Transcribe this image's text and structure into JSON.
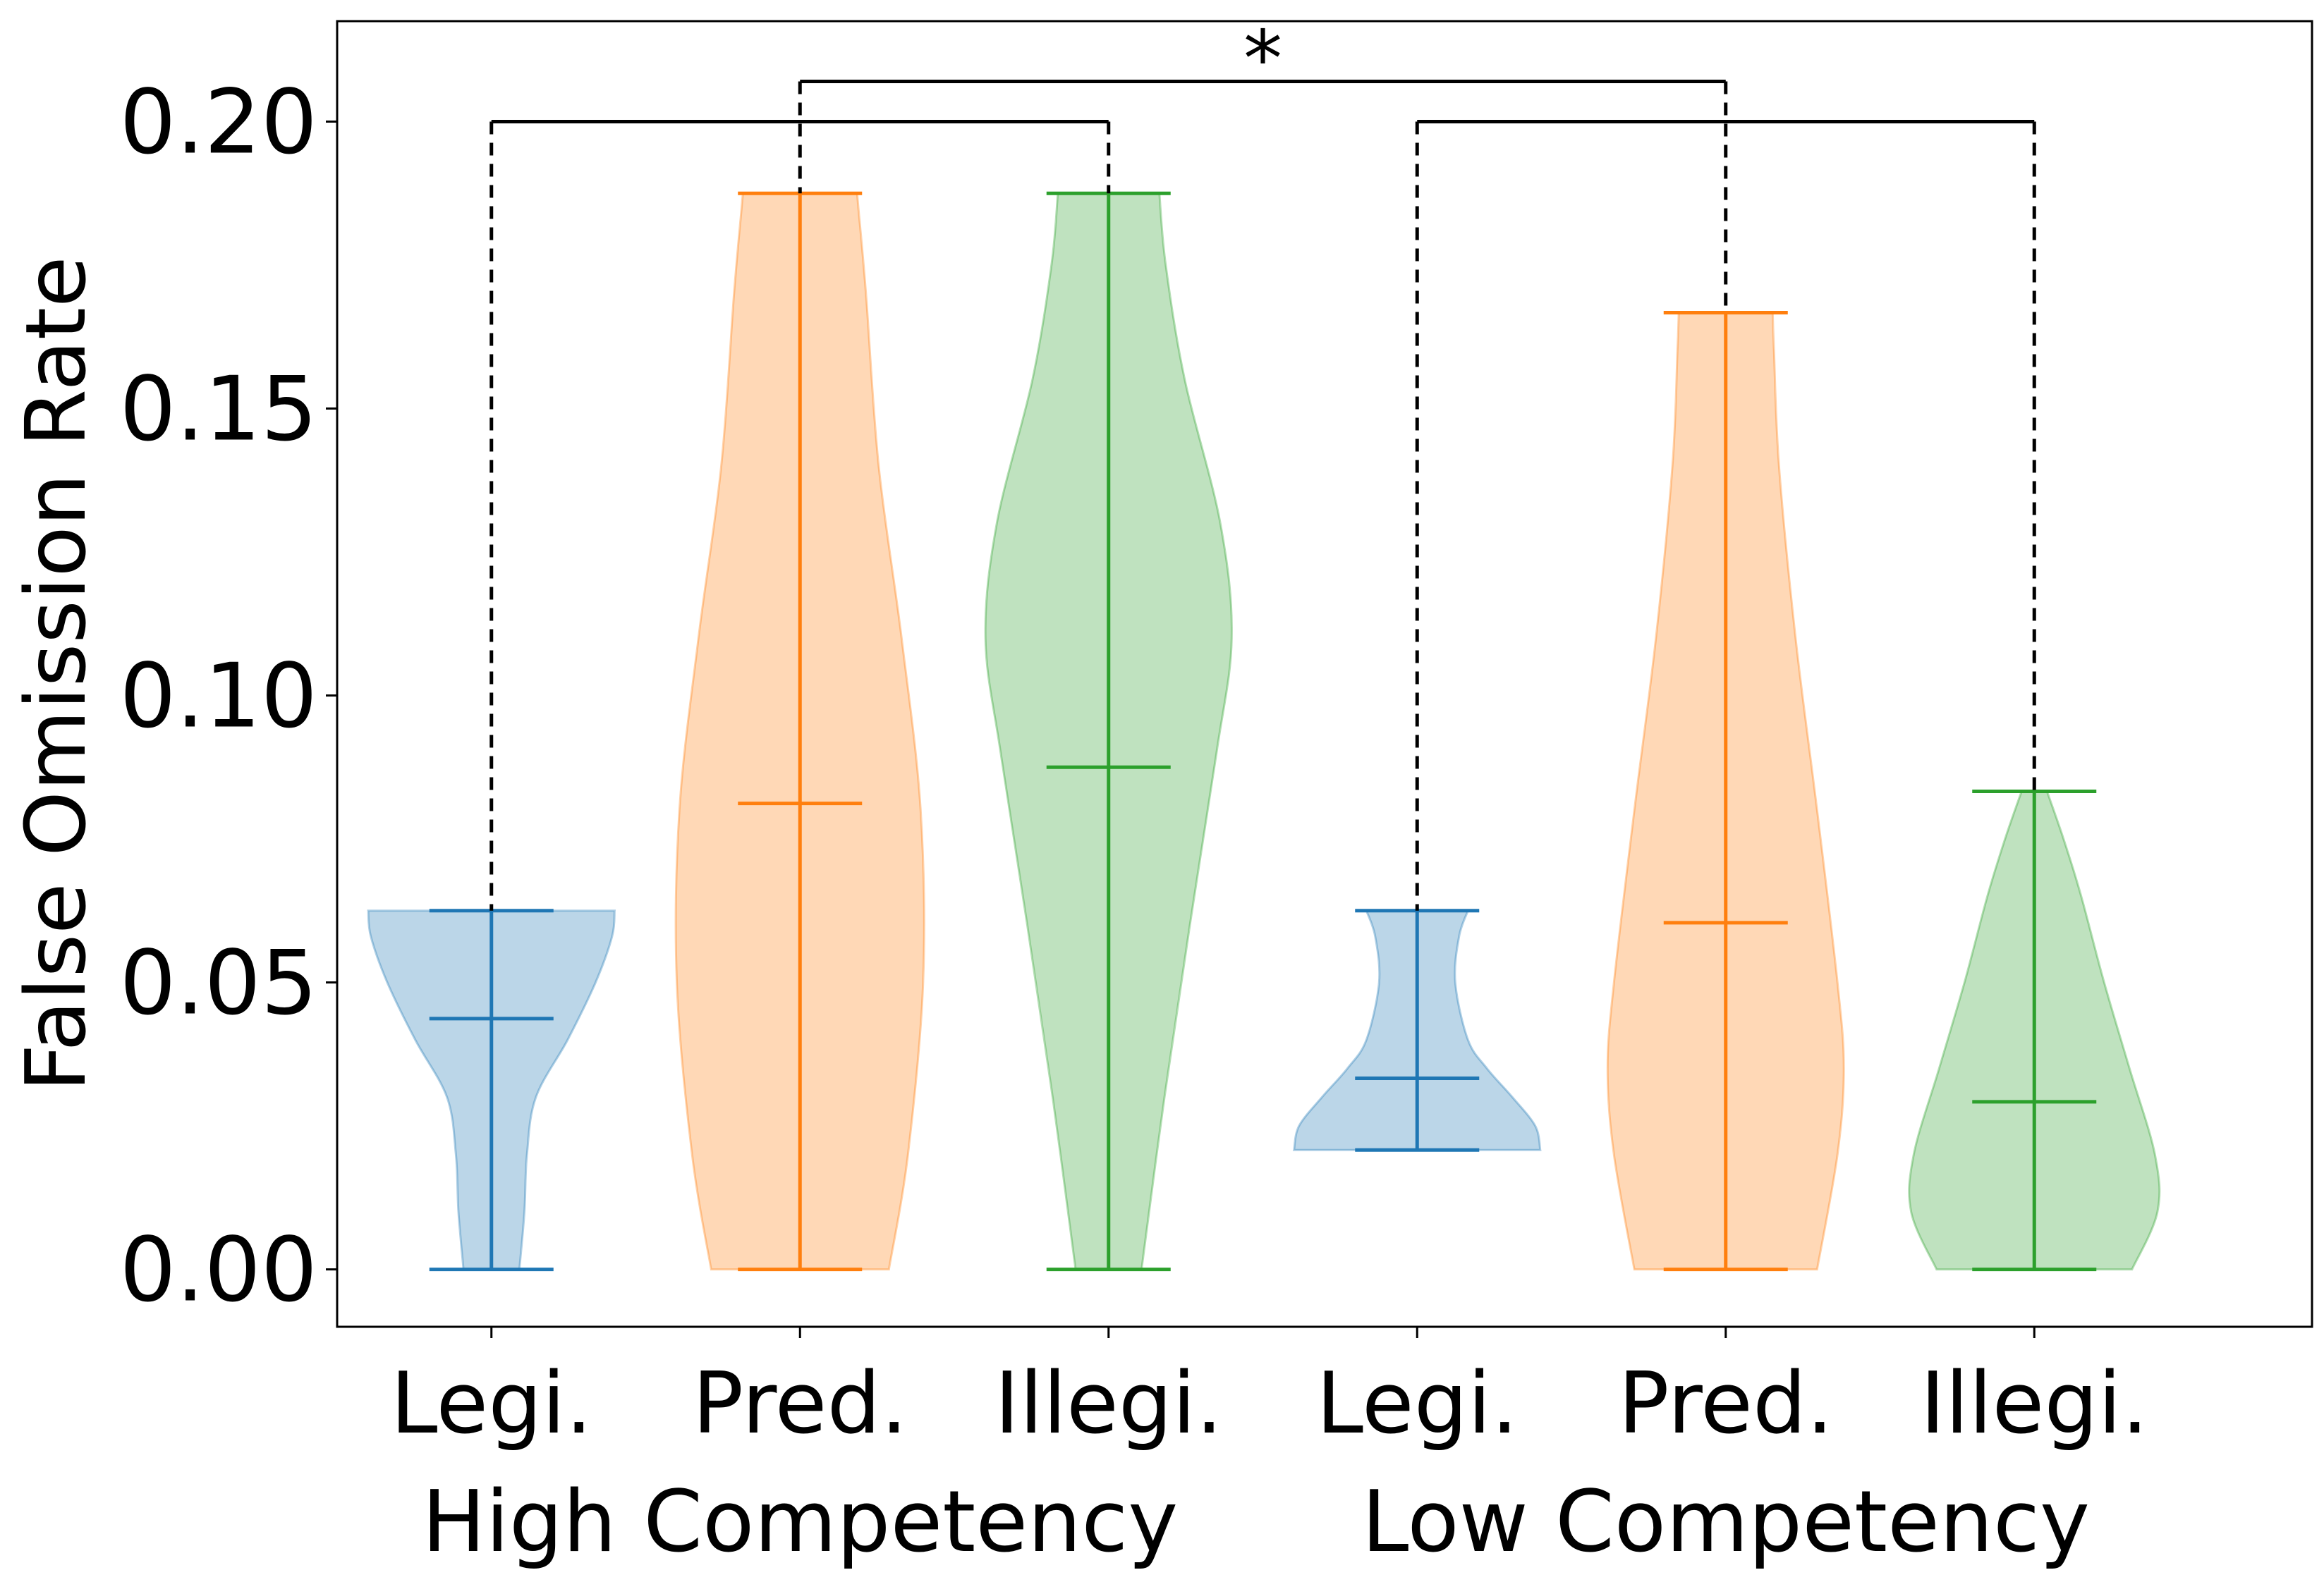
{
  "chart_data": {
    "type": "violin",
    "title": "",
    "xlabel": "",
    "ylabel": "False Omission Rate",
    "ylim": [
      -0.01,
      0.2175
    ],
    "yticks": [
      "0.00",
      "0.05",
      "0.10",
      "0.15",
      "0.20"
    ],
    "ytick_values": [
      0.0,
      0.05,
      0.1,
      0.15,
      0.2
    ],
    "grid": false,
    "legend": "none",
    "categories": [
      "Legi.",
      "Pred.",
      "Illegi.",
      "Legi.",
      "Pred.",
      "Illegi."
    ],
    "groups": [
      {
        "label": "High Competency",
        "members": [
          0,
          1,
          2
        ]
      },
      {
        "label": "Low Competency",
        "members": [
          3,
          4,
          5
        ]
      }
    ],
    "colors": {
      "blue": "#1f77b4",
      "orange": "#ff7f0e",
      "green": "#2ca02c"
    },
    "series": [
      {
        "category": "Legi.",
        "group": "High Competency",
        "color": "#1f77b4",
        "min": 0.0,
        "max": 0.0625,
        "mean": 0.0437,
        "density": [
          [
            0.0,
            0.22
          ],
          [
            0.01,
            0.26
          ],
          [
            0.02,
            0.28
          ],
          [
            0.03,
            0.35
          ],
          [
            0.04,
            0.6
          ],
          [
            0.05,
            0.82
          ],
          [
            0.058,
            0.95
          ],
          [
            0.0625,
            0.97
          ]
        ]
      },
      {
        "category": "Pred.",
        "group": "High Competency",
        "color": "#ff7f0e",
        "min": 0.0,
        "max": 0.1875,
        "mean": 0.0812,
        "density": [
          [
            0.0,
            0.7
          ],
          [
            0.02,
            0.85
          ],
          [
            0.05,
            0.97
          ],
          [
            0.08,
            0.95
          ],
          [
            0.11,
            0.8
          ],
          [
            0.14,
            0.62
          ],
          [
            0.17,
            0.52
          ],
          [
            0.185,
            0.46
          ],
          [
            0.1875,
            0.45
          ]
        ]
      },
      {
        "category": "Illegi.",
        "group": "High Competency",
        "color": "#2ca02c",
        "min": 0.0,
        "max": 0.1875,
        "mean": 0.0875,
        "density": [
          [
            0.0,
            0.26
          ],
          [
            0.03,
            0.44
          ],
          [
            0.06,
            0.64
          ],
          [
            0.09,
            0.85
          ],
          [
            0.11,
            0.97
          ],
          [
            0.13,
            0.88
          ],
          [
            0.155,
            0.6
          ],
          [
            0.175,
            0.45
          ],
          [
            0.1875,
            0.4
          ]
        ]
      },
      {
        "category": "Legi.",
        "group": "Low Competency",
        "color": "#1f77b4",
        "min": 0.0208,
        "max": 0.0625,
        "mean": 0.0333,
        "density": [
          [
            0.0208,
            0.97
          ],
          [
            0.025,
            0.93
          ],
          [
            0.03,
            0.75
          ],
          [
            0.035,
            0.55
          ],
          [
            0.04,
            0.4
          ],
          [
            0.05,
            0.3
          ],
          [
            0.058,
            0.33
          ],
          [
            0.0625,
            0.4
          ]
        ]
      },
      {
        "category": "Pred.",
        "group": "Low Competency",
        "color": "#ff7f0e",
        "min": 0.0,
        "max": 0.1667,
        "mean": 0.0604,
        "density": [
          [
            0.0,
            0.72
          ],
          [
            0.02,
            0.88
          ],
          [
            0.035,
            0.93
          ],
          [
            0.05,
            0.88
          ],
          [
            0.08,
            0.72
          ],
          [
            0.11,
            0.55
          ],
          [
            0.14,
            0.42
          ],
          [
            0.16,
            0.38
          ],
          [
            0.1667,
            0.37
          ]
        ]
      },
      {
        "category": "Illegi.",
        "group": "Low Competency",
        "color": "#2ca02c",
        "min": 0.0,
        "max": 0.0833,
        "mean": 0.0292,
        "density": [
          [
            0.0,
            0.77
          ],
          [
            0.01,
            0.97
          ],
          [
            0.02,
            0.95
          ],
          [
            0.035,
            0.75
          ],
          [
            0.05,
            0.55
          ],
          [
            0.065,
            0.37
          ],
          [
            0.075,
            0.23
          ],
          [
            0.0833,
            0.1
          ]
        ]
      }
    ],
    "significance": [
      {
        "from": 0,
        "to": 2,
        "y": 0.2,
        "label": ""
      },
      {
        "from": 1,
        "to": 4,
        "y": 0.207,
        "label": "*"
      },
      {
        "from": 3,
        "to": 5,
        "y": 0.2,
        "label": ""
      }
    ]
  }
}
